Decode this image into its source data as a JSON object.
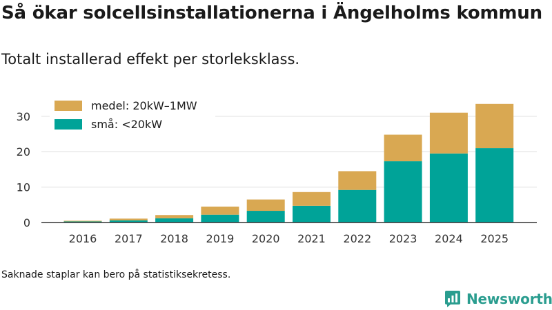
{
  "title": "Så ökar solcellsinstallationerna i Ängelholms kommun",
  "subtitle": "Totalt installerad effekt per storleksklass.",
  "footnote": "Saknade staplar kan bero på statistiksekretess.",
  "brand": {
    "name": "Newsworthy",
    "icon": "newsworthy-logo-icon",
    "color": "#2a9d8f"
  },
  "colors": {
    "small": "#00a398",
    "medium": "#d9a852",
    "grid": "#dddddd",
    "axis": "#333333"
  },
  "chart_data": {
    "type": "bar",
    "stacked": true,
    "title": "Så ökar solcellsinstallationerna i Ängelholms kommun",
    "subtitle": "Totalt installerad effekt per storleksklass.",
    "xlabel": "",
    "ylabel": "",
    "categories": [
      "2016",
      "2017",
      "2018",
      "2019",
      "2020",
      "2021",
      "2022",
      "2023",
      "2024",
      "2025"
    ],
    "series": [
      {
        "name": "små: <20kW",
        "color": "#00a398",
        "values": [
          0.3,
          0.6,
          1.2,
          2.2,
          3.3,
          4.7,
          9.2,
          17.3,
          19.5,
          21.0
        ]
      },
      {
        "name": "medel: 20kW–1MW",
        "color": "#d9a852",
        "values": [
          0.2,
          0.5,
          0.9,
          2.3,
          3.2,
          3.9,
          5.3,
          7.5,
          11.5,
          12.5
        ]
      }
    ],
    "ylim": [
      0,
      35
    ],
    "yticks": [
      0,
      10,
      20,
      30
    ],
    "grid": true,
    "legend": {
      "position": "top-left",
      "order": [
        "medel: 20kW–1MW",
        "små: <20kW"
      ]
    }
  }
}
